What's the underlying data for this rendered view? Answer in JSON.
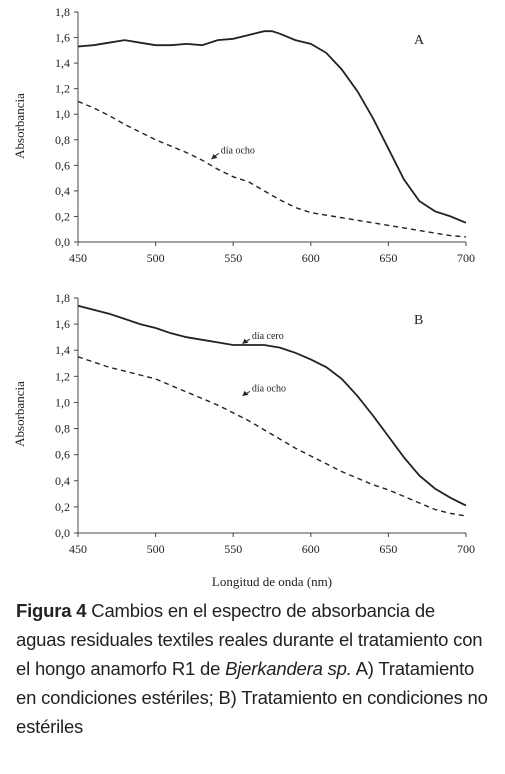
{
  "chart_data": [
    {
      "type": "line",
      "panel_label": "A",
      "ylabel": "Absorbancia",
      "xlabel": "",
      "xlim": [
        450,
        700
      ],
      "ylim": [
        0.0,
        1.8
      ],
      "x_ticks": [
        "450",
        "500",
        "550",
        "600",
        "650",
        "700"
      ],
      "y_ticks": [
        "0,0",
        "0,2",
        "0,4",
        "0,6",
        "0,8",
        "1,0",
        "1,2",
        "1,4",
        "1,6",
        "1,8"
      ],
      "grid": false,
      "series": [
        {
          "style": "solid",
          "x": [
            450,
            460,
            470,
            480,
            490,
            500,
            510,
            520,
            530,
            540,
            550,
            560,
            570,
            575,
            580,
            590,
            600,
            610,
            620,
            630,
            640,
            650,
            660,
            670,
            680,
            690,
            700
          ],
          "y": [
            1.53,
            1.54,
            1.56,
            1.58,
            1.56,
            1.54,
            1.54,
            1.55,
            1.54,
            1.58,
            1.59,
            1.62,
            1.65,
            1.65,
            1.63,
            1.58,
            1.55,
            1.48,
            1.35,
            1.18,
            0.97,
            0.73,
            0.49,
            0.32,
            0.24,
            0.2,
            0.15
          ]
        },
        {
          "name": "día ocho",
          "style": "dashed",
          "x": [
            450,
            460,
            470,
            480,
            490,
            500,
            510,
            520,
            530,
            540,
            550,
            560,
            570,
            580,
            590,
            600,
            610,
            620,
            630,
            640,
            650,
            660,
            670,
            680,
            690,
            700
          ],
          "y": [
            1.1,
            1.05,
            0.99,
            0.92,
            0.86,
            0.8,
            0.75,
            0.7,
            0.64,
            0.57,
            0.51,
            0.47,
            0.4,
            0.33,
            0.27,
            0.23,
            0.21,
            0.19,
            0.17,
            0.15,
            0.13,
            0.11,
            0.09,
            0.07,
            0.05,
            0.04
          ]
        }
      ],
      "annotations": [
        {
          "text": "día ocho",
          "x": 542,
          "y": 0.71,
          "arrow_to": [
            536,
            0.65
          ]
        }
      ]
    },
    {
      "type": "line",
      "panel_label": "B",
      "ylabel": "Absorbancia",
      "xlabel": "Longitud de onda (nm)",
      "xlim": [
        450,
        700
      ],
      "ylim": [
        0.0,
        1.8
      ],
      "x_ticks": [
        "450",
        "500",
        "550",
        "600",
        "650",
        "700"
      ],
      "y_ticks": [
        "0,0",
        "0,2",
        "0,4",
        "0,6",
        "0,8",
        "1,0",
        "1,2",
        "1,4",
        "1,6",
        "1,8"
      ],
      "grid": false,
      "series": [
        {
          "name": "día cero",
          "style": "solid",
          "x": [
            450,
            460,
            470,
            480,
            490,
            500,
            510,
            520,
            530,
            540,
            550,
            560,
            570,
            580,
            590,
            600,
            610,
            620,
            630,
            640,
            650,
            660,
            670,
            680,
            690,
            700
          ],
          "y": [
            1.74,
            1.71,
            1.68,
            1.64,
            1.6,
            1.57,
            1.53,
            1.5,
            1.48,
            1.46,
            1.44,
            1.44,
            1.44,
            1.42,
            1.38,
            1.33,
            1.27,
            1.18,
            1.05,
            0.9,
            0.74,
            0.58,
            0.44,
            0.34,
            0.27,
            0.21
          ]
        },
        {
          "name": "día ocho",
          "style": "dashed",
          "x": [
            450,
            460,
            470,
            480,
            490,
            500,
            510,
            520,
            530,
            540,
            550,
            560,
            570,
            580,
            590,
            600,
            610,
            620,
            630,
            640,
            650,
            660,
            670,
            680,
            690,
            700
          ],
          "y": [
            1.35,
            1.31,
            1.27,
            1.24,
            1.21,
            1.18,
            1.13,
            1.08,
            1.03,
            0.98,
            0.92,
            0.86,
            0.79,
            0.72,
            0.65,
            0.59,
            0.53,
            0.47,
            0.42,
            0.37,
            0.33,
            0.28,
            0.23,
            0.18,
            0.15,
            0.13
          ]
        }
      ],
      "annotations": [
        {
          "text": "día cero",
          "x": 562,
          "y": 1.5,
          "arrow_to": [
            556,
            1.45
          ]
        },
        {
          "text": "día ocho",
          "x": 562,
          "y": 1.1,
          "arrow_to": [
            556,
            1.05
          ]
        }
      ]
    }
  ],
  "caption": {
    "label": "Figura 4",
    "text_1": " Cambios en el espectro de absorbancia de aguas residuales textiles reales durante el tratamiento con el hongo anamorfo R1 de ",
    "species": "Bjerkandera sp.",
    "text_2": " A) Tratamiento en condiciones estériles; B) Tratamiento en condiciones no estériles"
  }
}
